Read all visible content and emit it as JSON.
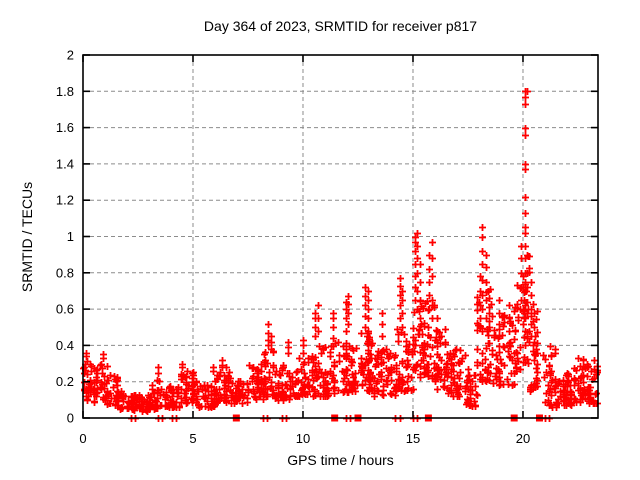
{
  "chart": {
    "title": "Day 364 of 2023, SRMTID for receiver p817",
    "xlabel": "GPS time / hours",
    "ylabel": "SRMTID / TECUs"
  },
  "chart_data": {
    "type": "scatter",
    "title": "Day 364 of 2023, SRMTID for receiver p817",
    "xlabel": "GPS time / hours",
    "ylabel": "SRMTID / TECUs",
    "xlim": [
      0,
      23.41
    ],
    "ylim": [
      0,
      2
    ],
    "xticks": [
      0,
      5,
      10,
      15,
      20
    ],
    "xtick_labels": [
      "0",
      "5",
      "10",
      "15",
      "20"
    ],
    "yticks": [
      0,
      0.2,
      0.4,
      0.6,
      0.8,
      1,
      1.2,
      1.4,
      1.6,
      1.8,
      2
    ],
    "ytick_labels": [
      "0",
      "0.2",
      "0.4",
      "0.6",
      "0.8",
      "1",
      "1.2",
      "1.4",
      "1.6",
      "1.8",
      "2"
    ],
    "grid": true,
    "grid_style": "dashed",
    "legend": false,
    "marker": "plus",
    "marker_color": "#ff0000",
    "grid_color": "#8c8c8c",
    "axis_color": "#000000",
    "seed": 1364817,
    "cloud_bands": [
      [
        0.0,
        0.5,
        0.1,
        0.32,
        30
      ],
      [
        0.5,
        1.1,
        0.09,
        0.3,
        36
      ],
      [
        1.1,
        1.6,
        0.07,
        0.24,
        30
      ],
      [
        1.6,
        2.3,
        0.05,
        0.16,
        40
      ],
      [
        2.3,
        3.1,
        0.04,
        0.13,
        46
      ],
      [
        3.1,
        3.7,
        0.05,
        0.22,
        34
      ],
      [
        3.7,
        4.4,
        0.06,
        0.18,
        40
      ],
      [
        4.4,
        5.2,
        0.08,
        0.26,
        46
      ],
      [
        5.2,
        6.0,
        0.06,
        0.19,
        46
      ],
      [
        6.0,
        6.7,
        0.09,
        0.28,
        40
      ],
      [
        6.7,
        7.5,
        0.08,
        0.21,
        44
      ],
      [
        7.5,
        8.2,
        0.1,
        0.3,
        40
      ],
      [
        8.2,
        8.7,
        0.12,
        0.38,
        30
      ],
      [
        8.7,
        9.6,
        0.1,
        0.3,
        50
      ],
      [
        9.6,
        10.3,
        0.12,
        0.35,
        40
      ],
      [
        10.3,
        11.2,
        0.12,
        0.4,
        55
      ],
      [
        11.2,
        12.3,
        0.14,
        0.42,
        64
      ],
      [
        12.3,
        13.2,
        0.15,
        0.48,
        58
      ],
      [
        13.2,
        14.2,
        0.12,
        0.38,
        58
      ],
      [
        14.2,
        15.0,
        0.15,
        0.5,
        48
      ],
      [
        15.0,
        16.0,
        0.22,
        0.65,
        64
      ],
      [
        16.0,
        16.5,
        0.15,
        0.5,
        34
      ],
      [
        16.5,
        17.4,
        0.12,
        0.38,
        50
      ],
      [
        17.4,
        17.9,
        0.06,
        0.28,
        30
      ],
      [
        17.9,
        18.6,
        0.2,
        0.75,
        44
      ],
      [
        18.6,
        19.6,
        0.18,
        0.6,
        55
      ],
      [
        19.6,
        20.0,
        0.25,
        0.8,
        28
      ],
      [
        20.0,
        20.3,
        0.3,
        0.9,
        30
      ],
      [
        20.3,
        20.75,
        0.15,
        0.65,
        30
      ],
      [
        20.9,
        21.5,
        0.06,
        0.4,
        34
      ],
      [
        21.5,
        22.3,
        0.07,
        0.26,
        50
      ],
      [
        22.3,
        22.8,
        0.09,
        0.33,
        36
      ],
      [
        22.8,
        23.4,
        0.08,
        0.3,
        40
      ]
    ],
    "spike_columns": [
      {
        "x": 0.15,
        "ys": [
          0.34,
          0.36
        ]
      },
      {
        "x": 0.9,
        "ys": [
          0.33,
          0.35
        ]
      },
      {
        "x": 3.4,
        "ys": [
          0.25,
          0.28
        ]
      },
      {
        "x": 4.5,
        "ys": [
          0.28,
          0.3
        ]
      },
      {
        "x": 5.9,
        "ys": [
          0.26,
          0.28
        ]
      },
      {
        "x": 6.3,
        "ys": [
          0.29,
          0.32
        ]
      },
      {
        "x": 8.4,
        "ys": [
          0.4,
          0.43,
          0.47,
          0.52
        ]
      },
      {
        "x": 8.55,
        "ys": [
          0.38,
          0.42,
          0.45
        ]
      },
      {
        "x": 9.3,
        "ys": [
          0.36,
          0.39,
          0.42
        ]
      },
      {
        "x": 10.0,
        "ys": [
          0.36,
          0.4,
          0.43
        ]
      },
      {
        "x": 10.55,
        "ys": [
          0.45,
          0.5,
          0.55,
          0.58
        ]
      },
      {
        "x": 10.7,
        "ys": [
          0.48,
          0.55,
          0.62
        ]
      },
      {
        "x": 11.35,
        "ys": [
          0.44,
          0.5,
          0.55,
          0.58
        ]
      },
      {
        "x": 11.95,
        "ys": [
          0.48,
          0.55,
          0.6,
          0.64
        ]
      },
      {
        "x": 12.05,
        "ys": [
          0.52,
          0.58,
          0.63,
          0.67
        ]
      },
      {
        "x": 12.8,
        "ys": [
          0.5,
          0.56,
          0.62,
          0.67,
          0.72
        ]
      },
      {
        "x": 12.95,
        "ys": [
          0.48,
          0.55,
          0.6,
          0.65,
          0.7
        ]
      },
      {
        "x": 13.6,
        "ys": [
          0.45,
          0.52,
          0.58
        ]
      },
      {
        "x": 14.4,
        "ys": [
          0.55,
          0.62,
          0.68,
          0.73,
          0.77
        ]
      },
      {
        "x": 14.5,
        "ys": [
          0.5,
          0.58,
          0.65,
          0.7
        ]
      },
      {
        "x": 15.1,
        "ys": [
          0.65,
          0.72,
          0.78,
          0.85,
          0.92,
          0.97,
          1.0
        ]
      },
      {
        "x": 15.2,
        "ys": [
          0.6,
          0.7,
          0.8,
          0.88,
          0.95,
          1.02
        ]
      },
      {
        "x": 15.3,
        "ys": [
          0.55,
          0.65,
          0.75,
          0.85
        ]
      },
      {
        "x": 15.75,
        "ys": [
          0.6,
          0.68,
          0.75,
          0.82,
          0.9
        ]
      },
      {
        "x": 15.85,
        "ys": [
          0.55,
          0.65,
          0.78,
          0.88,
          0.97
        ]
      },
      {
        "x": 16.1,
        "ys": [
          0.35,
          0.42,
          0.48,
          0.55
        ]
      },
      {
        "x": 18.05,
        "ys": [
          0.55,
          0.62,
          0.7,
          0.78
        ]
      },
      {
        "x": 18.15,
        "ys": [
          0.6,
          0.68,
          0.76,
          0.85,
          0.92,
          1.0,
          1.05
        ]
      },
      {
        "x": 18.3,
        "ys": [
          0.55,
          0.65,
          0.75,
          0.83,
          0.9
        ]
      },
      {
        "x": 18.45,
        "ys": [
          0.5,
          0.58,
          0.66
        ]
      },
      {
        "x": 18.9,
        "ys": [
          0.45,
          0.52,
          0.58,
          0.65
        ]
      },
      {
        "x": 19.35,
        "ys": [
          0.4,
          0.48,
          0.55,
          0.62
        ]
      },
      {
        "x": 19.9,
        "ys": [
          0.65,
          0.72,
          0.8,
          0.88,
          0.95
        ]
      },
      {
        "x": 20.1,
        "ys": [
          0.4,
          0.48,
          0.55,
          0.62,
          0.7,
          0.75,
          0.8,
          0.88,
          0.95,
          1.02,
          1.05,
          1.13,
          1.22,
          1.37,
          1.4,
          1.56,
          1.6,
          1.73,
          1.77,
          1.8
        ]
      },
      {
        "x": 20.17,
        "ys": [
          0.45,
          0.58,
          0.72,
          0.9,
          1.8
        ]
      },
      {
        "x": 20.35,
        "ys": [
          0.45,
          0.52,
          0.6,
          0.68,
          0.75
        ]
      },
      {
        "x": 20.5,
        "ys": [
          0.35,
          0.42,
          0.5,
          0.58
        ]
      },
      {
        "x": 23.25,
        "ys": [
          0.22,
          0.27,
          0.32
        ]
      }
    ],
    "zero_markers": {
      "plus_x": [
        2.2,
        2.35,
        3.4,
        3.6,
        4.05,
        4.25,
        8.2,
        8.37,
        9.05,
        9.25,
        11.95,
        12.15,
        14.2,
        14.4,
        15.0,
        15.2,
        21.0,
        21.2
      ],
      "square_x": [
        6.97,
        11.44,
        12.5,
        15.7,
        19.6,
        20.75
      ]
    }
  }
}
